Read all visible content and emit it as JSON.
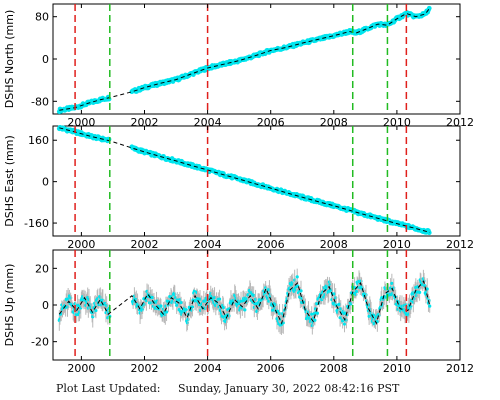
{
  "footer": {
    "label": "Plot Last Updated:",
    "timestamp": "Sunday, January 30, 2022 08:42:16 PST"
  },
  "colors": {
    "data_points": "#00e5ee",
    "error_bars": "#b8b8b8",
    "model_line": "#000000",
    "red_marker": "#e0201c",
    "green_marker": "#22bb22"
  },
  "chart_data": [
    {
      "type": "scatter",
      "title": "",
      "ylabel": "DSHS North (mm)",
      "xlim": [
        1999.1,
        2012
      ],
      "ylim": [
        -104,
        104
      ],
      "xticks": [
        2000,
        2002,
        2004,
        2006,
        2008,
        2010,
        2012
      ],
      "yticks": [
        -80,
        0,
        80
      ],
      "red_lines": [
        1999.8,
        2004.0,
        2010.3
      ],
      "green_lines": [
        2000.9,
        2008.6,
        2009.7
      ],
      "error_bars": false,
      "gap": [
        2000.9,
        2001.6
      ],
      "series": [
        {
          "x": [
            1999.3,
            1999.8,
            2000.2,
            2000.6,
            2000.9,
            2001.6,
            2002.0,
            2002.5,
            2003.0,
            2003.5,
            2004.0,
            2004.5,
            2005.0,
            2005.5,
            2006.0,
            2006.5,
            2007.0,
            2007.5,
            2008.0,
            2008.5,
            2008.7,
            2009.0,
            2009.4,
            2009.7,
            2009.9,
            2010.0,
            2010.3,
            2010.6,
            2010.9,
            2011.05
          ],
          "y": [
            -97,
            -92,
            -84,
            -77,
            -73,
            -62,
            -54,
            -46,
            -39,
            -28,
            -17,
            -10,
            -3,
            6,
            16,
            22,
            30,
            37,
            44,
            52,
            49,
            56,
            66,
            64,
            72,
            76,
            86,
            80,
            85,
            97
          ]
        }
      ]
    },
    {
      "type": "scatter",
      "title": "",
      "ylabel": "DSHS East (mm)",
      "xlim": [
        1999.1,
        2012
      ],
      "ylim": [
        -210,
        215
      ],
      "xticks": [
        2000,
        2002,
        2004,
        2006,
        2008,
        2010,
        2012
      ],
      "yticks": [
        -160,
        0,
        160
      ],
      "red_lines": [
        1999.8,
        2004.0,
        2010.3
      ],
      "green_lines": [
        2000.9,
        2008.6,
        2009.7
      ],
      "error_bars": false,
      "gap": [
        2000.9,
        2001.6
      ],
      "series": [
        {
          "x": [
            1999.3,
            1999.8,
            2000.3,
            2000.9,
            2001.6,
            2002.0,
            2002.5,
            2003.0,
            2003.5,
            2004.0,
            2004.5,
            2005.0,
            2005.5,
            2006.0,
            2006.5,
            2007.0,
            2007.5,
            2008.0,
            2008.6,
            2009.0,
            2009.5,
            2010.0,
            2010.5,
            2011.05
          ],
          "y": [
            208,
            192,
            175,
            158,
            130,
            115,
            97,
            80,
            62,
            45,
            27,
            10,
            -8,
            -25,
            -43,
            -60,
            -77,
            -93,
            -114,
            -128,
            -145,
            -162,
            -178,
            -196
          ]
        }
      ]
    },
    {
      "type": "scatter",
      "title": "",
      "ylabel": "DSHS Up (mm)",
      "xlim": [
        1999.1,
        2012
      ],
      "ylim": [
        -30,
        30
      ],
      "xticks": [
        2000,
        2002,
        2004,
        2006,
        2008,
        2010,
        2012
      ],
      "yticks": [
        -20,
        0,
        20
      ],
      "red_lines": [
        1999.8,
        2004.0,
        2010.3
      ],
      "green_lines": [
        2000.9,
        2008.6,
        2009.7
      ],
      "error_bars": true,
      "gap": [
        2000.9,
        2001.6
      ],
      "series": [
        {
          "x": [
            1999.3,
            1999.6,
            1999.85,
            2000.1,
            2000.35,
            2000.6,
            2000.85,
            2001.6,
            2001.85,
            2002.1,
            2002.35,
            2002.6,
            2002.85,
            2003.1,
            2003.35,
            2003.6,
            2003.85,
            2004.1,
            2004.35,
            2004.6,
            2004.85,
            2005.1,
            2005.35,
            2005.6,
            2005.85,
            2006.1,
            2006.35,
            2006.6,
            2006.85,
            2007.1,
            2007.35,
            2007.6,
            2007.85,
            2008.1,
            2008.35,
            2008.6,
            2008.85,
            2009.1,
            2009.35,
            2009.6,
            2009.85,
            2010.1,
            2010.35,
            2010.6,
            2010.85,
            2011.05
          ],
          "y": [
            -5,
            2,
            -3,
            4,
            -4,
            3,
            -5,
            5,
            -2,
            6,
            0,
            -5,
            4,
            1,
            -7,
            5,
            -2,
            4,
            1,
            -7,
            3,
            -1,
            5,
            -2,
            9,
            -1,
            -10,
            8,
            12,
            -3,
            -9,
            6,
            10,
            -1,
            -8,
            7,
            12,
            -2,
            -10,
            6,
            9,
            -2,
            -3,
            8,
            13,
            -1
          ]
        }
      ]
    }
  ]
}
